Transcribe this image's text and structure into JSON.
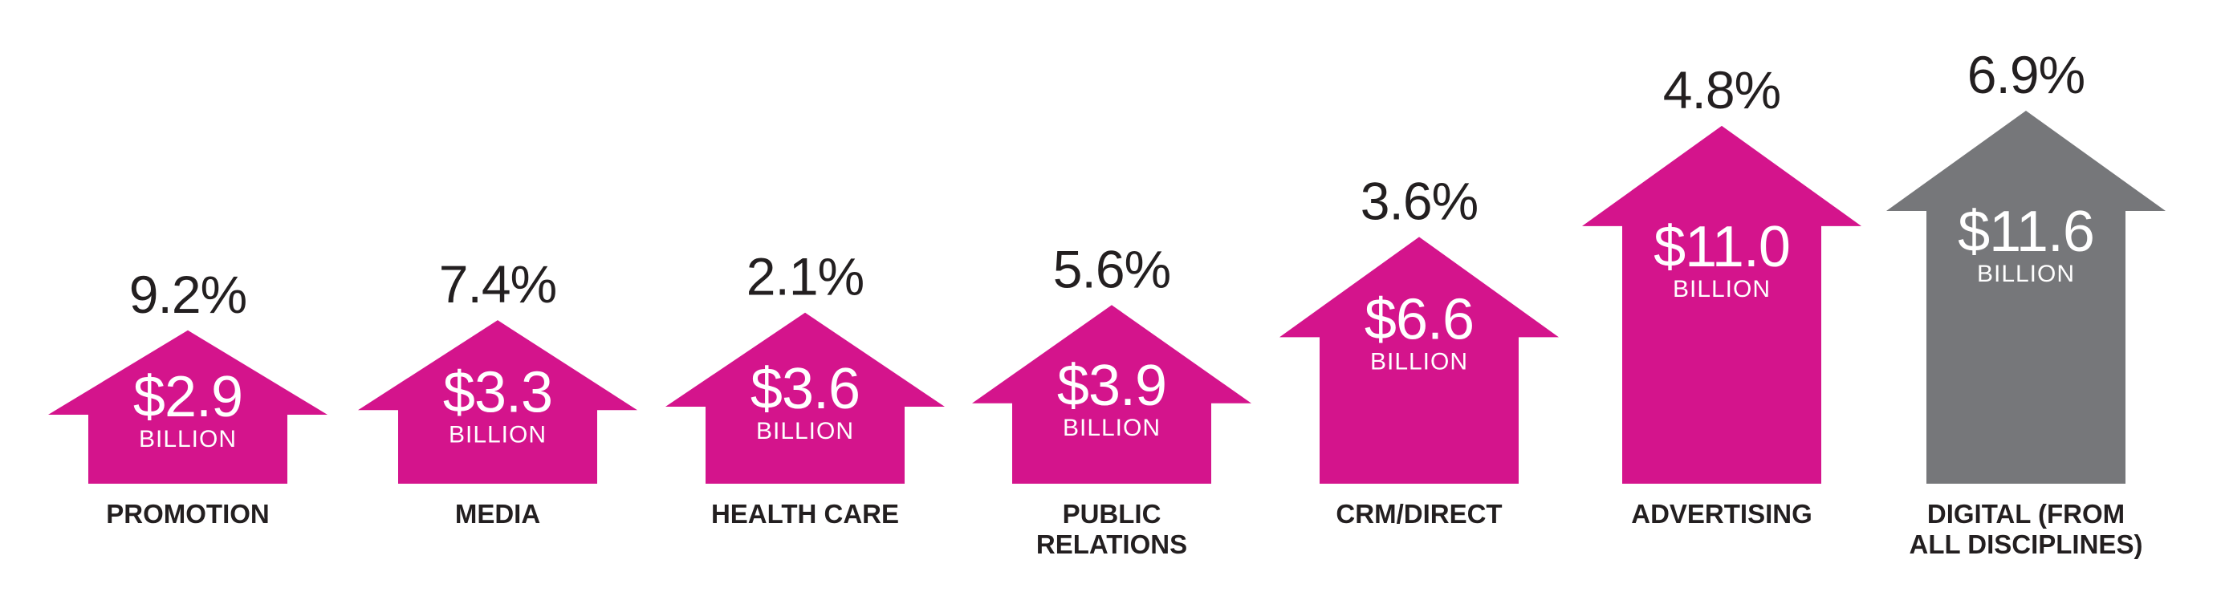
{
  "chart_data": {
    "type": "bar",
    "categories": [
      [
        "PROMOTION"
      ],
      [
        "MEDIA"
      ],
      [
        "HEALTH CARE"
      ],
      [
        "PUBLIC",
        "RELATIONS"
      ],
      [
        "CRM/DIRECT"
      ],
      [
        "ADVERTISING"
      ],
      [
        "DIGITAL (FROM",
        "ALL DISCIPLINES)"
      ]
    ],
    "values": [
      2.9,
      3.3,
      3.6,
      3.9,
      6.6,
      11.0,
      11.6
    ],
    "value_labels": [
      "$2.9",
      "$3.3",
      "$3.6",
      "$3.9",
      "$6.6",
      "$11.0",
      "$11.6"
    ],
    "unit_label": "BILLION",
    "growth_labels": [
      "9.2%",
      "7.4%",
      "2.1%",
      "5.6%",
      "3.6%",
      "4.8%",
      "6.9%"
    ],
    "colors": [
      "#d4148c",
      "#d4148c",
      "#d4148c",
      "#d4148c",
      "#d4148c",
      "#d4148c",
      "#76777a"
    ],
    "ylim": [
      0,
      11.6
    ]
  }
}
